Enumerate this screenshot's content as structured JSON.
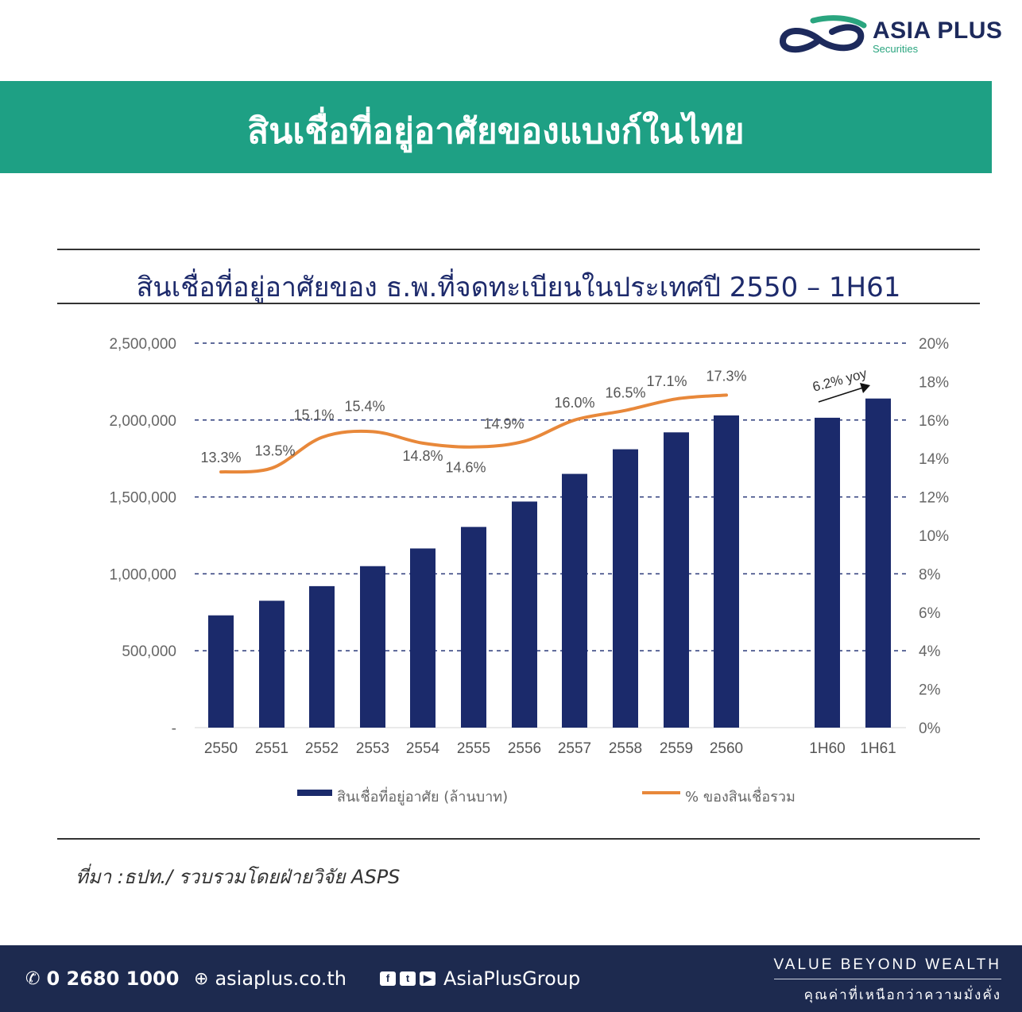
{
  "brand": {
    "name": "ASIA PLUS",
    "sub": "Securities"
  },
  "banner": {
    "title": "สินเชื่อที่อยู่อาศัยของแบงก์ในไทย"
  },
  "colors": {
    "banner": "#1ea084",
    "bar": "#1b2a6b",
    "line": "#e8883a",
    "footer": "#1d2a4f"
  },
  "chart_data": {
    "type": "bar",
    "title": "สินเชื่อที่อยู่อาศัยของ ธ.พ.ที่จดทะเบียนในประเทศปี 2550 – 1H61",
    "categories": [
      "2550",
      "2551",
      "2552",
      "2553",
      "2554",
      "2555",
      "2556",
      "2557",
      "2558",
      "2559",
      "2560",
      "1H60",
      "1H61"
    ],
    "series": [
      {
        "name": "สินเชื่อที่อยู่อาศัย (ล้านบาท)",
        "type": "bar",
        "axis": "left",
        "values": [
          730000,
          825000,
          920000,
          1050000,
          1165000,
          1305000,
          1470000,
          1650000,
          1810000,
          1920000,
          2030000,
          2015000,
          2140000
        ]
      },
      {
        "name": "% ของสินเชื่อรวม",
        "type": "line",
        "axis": "right",
        "values": [
          13.3,
          13.5,
          15.1,
          15.4,
          14.8,
          14.6,
          14.9,
          16.0,
          16.5,
          17.1,
          17.3,
          null,
          null
        ],
        "labels": [
          "13.3%",
          "13.5%",
          "15.1%",
          "15.4%",
          "14.8%",
          "14.6%",
          "14.9%",
          "16.0%",
          "16.5%",
          "17.1%",
          "17.3%",
          "",
          ""
        ]
      }
    ],
    "y_left": {
      "min": 0,
      "max": 2500000,
      "ticks": [
        "-",
        "500,000",
        "1,000,000",
        "1,500,000",
        "2,000,000",
        "2,500,000"
      ]
    },
    "y_right": {
      "min": 0,
      "max": 20,
      "ticks": [
        "0%",
        "2%",
        "4%",
        "6%",
        "8%",
        "10%",
        "12%",
        "14%",
        "16%",
        "18%",
        "20%"
      ]
    },
    "annotation": "6.2% yoy",
    "grid": "dashed horizontal",
    "legend_position": "bottom"
  },
  "source": "ที่มา :ธปท./ รวบรวมโดยฝ่ายวิจัย ASPS",
  "footer": {
    "phone": "0 2680 1000",
    "website": "asiaplus.co.th",
    "social": "AsiaPlusGroup",
    "tagline_en": "VALUE BEYOND WEALTH",
    "tagline_th": "คุณค่าที่เหนือกว่าความมั่งคั่ง",
    "icons": [
      "phone-icon",
      "globe-icon",
      "facebook-icon",
      "twitter-icon",
      "youtube-icon"
    ]
  }
}
